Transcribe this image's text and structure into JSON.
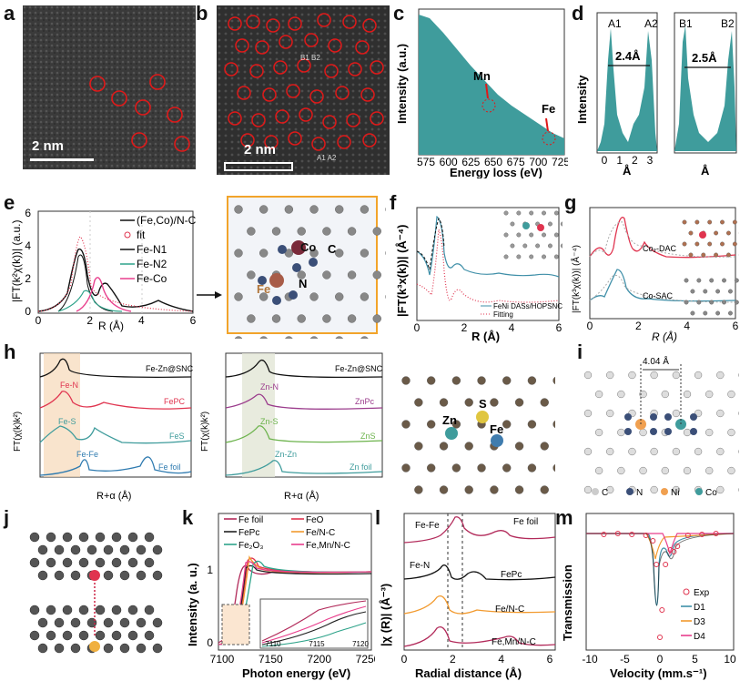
{
  "panel_labels": [
    "a",
    "b",
    "c",
    "d",
    "e",
    "f",
    "g",
    "h",
    "i",
    "j",
    "k",
    "l",
    "m"
  ],
  "panel_a": {
    "scale": "2 nm"
  },
  "panel_b": {
    "scale": "2 nm",
    "pair_label": "B1 B2",
    "pair_label2": "A1 A2"
  },
  "panel_c": {
    "ylabel": "Intensity (a.u.)",
    "xlabel": "Energy loss (eV)",
    "annot_mn": "Mn",
    "annot_fe": "Fe",
    "xticks": [
      "575",
      "600",
      "625",
      "650",
      "675",
      "700",
      "725"
    ]
  },
  "panel_d": {
    "ylabel": "Intensity",
    "xlabel": "Å",
    "left_peaks": [
      "A1",
      "A2"
    ],
    "left_dist": "2.4Å",
    "right_peaks": [
      "B1",
      "B2"
    ],
    "right_dist": "2.5Å",
    "xticks": [
      "0",
      "1",
      "2",
      "3"
    ]
  },
  "panel_e": {
    "ylabel": "|FT(k²χ(k))| (a.u.)",
    "xlabel": "R (Å)",
    "legend": [
      "(Fe,Co)/N-C",
      "fit",
      "Fe-N1",
      "Fe-N2",
      "Fe-Co"
    ],
    "yticks": [
      "0",
      "2",
      "4",
      "6"
    ],
    "xticks": [
      "0",
      "2",
      "4",
      "6"
    ],
    "atoms": {
      "co": "Co",
      "fe": "Fe",
      "n": "N",
      "c": "C"
    }
  },
  "panel_f": {
    "ylabel": "|FT(k³x(k))| (Å⁻⁴)",
    "xlabel": "R (Å)",
    "legend": [
      "FeNi DASs/HOPSNC",
      "Fitting"
    ],
    "xticks": [
      "0",
      "2",
      "4",
      "6"
    ]
  },
  "panel_g": {
    "ylabel": "|FT(k³χ(k))| (Å⁻⁴)",
    "xlabel": "R (Å)",
    "labels": [
      "Co₂-DAC",
      "Co-SAC"
    ],
    "xticks": [
      "0",
      "2",
      "4",
      "6"
    ]
  },
  "panel_h": {
    "ylabel": "FT(χ(k)k²)",
    "xlabel": "R+α (Å)",
    "left": [
      "Fe-Zn@SNC",
      "FePC",
      "FeS",
      "Fe foil"
    ],
    "left_peaks": [
      "Fe-N",
      "Fe-S",
      "Fe-Fe"
    ],
    "right": [
      "Fe-Zn@SNC",
      "ZnPc",
      "ZnS",
      "Zn foil"
    ],
    "right_peaks": [
      "Zn-N",
      "Zn-S",
      "Zn-Zn"
    ],
    "atoms": [
      "Zn",
      "S",
      "Fe"
    ]
  },
  "panel_i": {
    "distance": "4.04 Å",
    "legend": [
      "C",
      "N",
      "Ni",
      "Co"
    ]
  },
  "panel_k": {
    "ylabel": "Intensity (a. u.)",
    "xlabel": "Photon energy (eV)",
    "legend": [
      "Fe foil",
      "FeO",
      "FePc",
      "Fe/N-C",
      "Fe₂O₃",
      "Fe,Mn/N-C"
    ],
    "xticks": [
      "7100",
      "7150",
      "7200",
      "7250"
    ],
    "yticks": [
      "0",
      "1"
    ],
    "inset_xticks": [
      "7110",
      "7115",
      "7120"
    ]
  },
  "panel_l": {
    "ylabel": "|χ (R)| (Å⁻³)",
    "xlabel": "Radial distance (Å)",
    "labels": [
      "Fe-Fe",
      "Fe foil",
      "Fe-N",
      "FePc",
      "Fe/N-C",
      "Fe,Mn/N-C"
    ],
    "xticks": [
      "0",
      "2",
      "4",
      "6"
    ]
  },
  "panel_m": {
    "ylabel": "Transmission",
    "xlabel": "Velocity (mm.s⁻¹)",
    "legend": [
      "Exp",
      "D1",
      "D3",
      "D4"
    ],
    "xticks": [
      "-10",
      "-5",
      "0",
      "5",
      "10"
    ]
  },
  "colors": {
    "teal": "#3f9c9c",
    "red": "#e0344f",
    "black": "#111111",
    "orange": "#f29a2e",
    "purple": "#8b2a7a",
    "pink": "#e83e8c",
    "green": "#2ea38a"
  }
}
